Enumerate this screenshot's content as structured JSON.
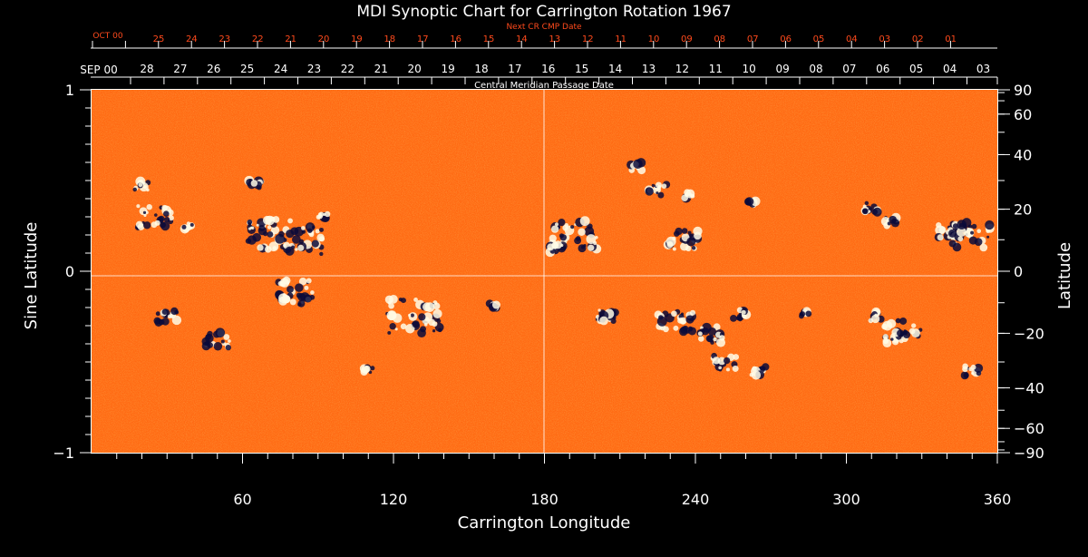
{
  "chart_data": {
    "type": "heatmap",
    "title": "MDI Synoptic Chart for Carrington Rotation 1967",
    "xlabel": "Carrington Longitude",
    "ylabel_left": "Sine Latitude",
    "ylabel_right": "Latitude",
    "xlim": [
      0,
      360
    ],
    "ylim": [
      -1,
      1
    ],
    "x_ticks": [
      60,
      120,
      180,
      240,
      300,
      360
    ],
    "left_ticks": [
      {
        "value": 1,
        "label": "1"
      },
      {
        "value": 0,
        "label": "0"
      },
      {
        "value": -1,
        "label": "−1"
      }
    ],
    "right_ticks": [
      {
        "deg": 90,
        "label": "90"
      },
      {
        "deg": 60,
        "label": "60"
      },
      {
        "deg": 40,
        "label": "40"
      },
      {
        "deg": 20,
        "label": "20"
      },
      {
        "deg": 0,
        "label": "0"
      },
      {
        "deg": -20,
        "label": "−20"
      },
      {
        "deg": -40,
        "label": "−40"
      },
      {
        "deg": -60,
        "label": "−60"
      },
      {
        "deg": -90,
        "label": "−90"
      }
    ],
    "grid": {
      "equator": true,
      "central_meridian": 180
    },
    "cmp_axis": {
      "label": "Central Meridian Passage Date",
      "month_label": "SEP 00",
      "dates": [
        "28",
        "27",
        "26",
        "25",
        "24",
        "23",
        "22",
        "21",
        "20",
        "19",
        "18",
        "17",
        "16",
        "15",
        "14",
        "13",
        "12",
        "11",
        "10",
        "09",
        "08",
        "07",
        "06",
        "05",
        "04",
        "03"
      ]
    },
    "next_cmp_axis": {
      "label": "Next CR CMP Date",
      "month_label": "OCT 00",
      "dates": [
        "25",
        "24",
        "23",
        "22",
        "21",
        "20",
        "19",
        "18",
        "17",
        "16",
        "15",
        "14",
        "13",
        "12",
        "11",
        "10",
        "09",
        "08",
        "07",
        "06",
        "05",
        "04",
        "03",
        "02",
        "01"
      ]
    },
    "colors": {
      "background": "#000000",
      "axis": "#ffffff",
      "next_cmp": "#ff4a1c",
      "field_base": "#ff6a14",
      "positive_polarity": "#ffffff",
      "negative_polarity": "#0a0a3a"
    }
  }
}
